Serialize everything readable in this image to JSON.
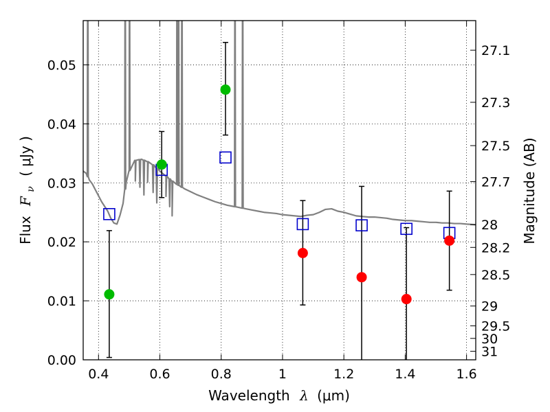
{
  "chart_data": {
    "type": "scatter",
    "xlabel": "Wavelength  λ (μm)",
    "ylabel": "Flux  F_ν  ( μJy )",
    "ylabel_parts": {
      "lead": "Flux",
      "symbol": "F",
      "subscript": "ν",
      "unit": "( μJy )"
    },
    "xlabel_parts": {
      "lead": "Wavelength",
      "symbol": "λ",
      "unit": "(μm)"
    },
    "y2label": "Magnitude (AB)",
    "xlim": [
      0.35,
      1.63
    ],
    "ylim": [
      0.0,
      0.0575
    ],
    "grid": true,
    "x_ticks": [
      0.4,
      0.6,
      0.8,
      1.0,
      1.2,
      1.4,
      1.6
    ],
    "x_tick_labels": [
      "0.4",
      "0.6",
      "0.8",
      "1",
      "1.2",
      "1.4",
      "1.6"
    ],
    "y_ticks": [
      0.0,
      0.01,
      0.02,
      0.03,
      0.04,
      0.05
    ],
    "y_tick_labels": [
      "0.00",
      "0.01",
      "0.02",
      "0.03",
      "0.04",
      "0.05"
    ],
    "y2_ticks": [
      {
        "label": "27.1",
        "mag": 27.1
      },
      {
        "label": "27.3",
        "mag": 27.3
      },
      {
        "label": "27.5",
        "mag": 27.5
      },
      {
        "label": "27.7",
        "mag": 27.7
      },
      {
        "label": "28",
        "mag": 28.0
      },
      {
        "label": "28.2",
        "mag": 28.2
      },
      {
        "label": "28.5",
        "mag": 28.5
      },
      {
        "label": "29",
        "mag": 29.0
      },
      {
        "label": "29.5",
        "mag": 29.5
      },
      {
        "label": "30",
        "mag": 30.0
      },
      {
        "label": "31",
        "mag": 31.0
      }
    ],
    "observed_detections": {
      "color": "#00bb00",
      "points": [
        {
          "x": 0.435,
          "y": 0.0111,
          "lo": 0.0004,
          "hi": 0.0219
        },
        {
          "x": 0.606,
          "y": 0.0331,
          "lo": 0.0275,
          "hi": 0.0387
        },
        {
          "x": 0.814,
          "y": 0.0458,
          "lo": 0.0381,
          "hi": 0.0538
        }
      ]
    },
    "observed_nondetections": {
      "color": "#ff0000",
      "points": [
        {
          "x": 1.066,
          "y": 0.0181,
          "lo": 0.0093,
          "hi": 0.027
        },
        {
          "x": 1.258,
          "y": 0.014,
          "lo": -0.002,
          "hi": 0.0294
        },
        {
          "x": 1.404,
          "y": 0.0103,
          "lo": -0.002,
          "hi": 0.0224
        },
        {
          "x": 1.544,
          "y": 0.0202,
          "lo": 0.0118,
          "hi": 0.0286
        }
      ]
    },
    "model_photometry": {
      "color": "#0000cc",
      "points": [
        {
          "x": 0.435,
          "y": 0.0247
        },
        {
          "x": 0.606,
          "y": 0.0322
        },
        {
          "x": 0.814,
          "y": 0.0343
        },
        {
          "x": 1.066,
          "y": 0.023
        },
        {
          "x": 1.258,
          "y": 0.0228
        },
        {
          "x": 1.404,
          "y": 0.0222
        },
        {
          "x": 1.544,
          "y": 0.0215
        }
      ]
    },
    "model_spectrum": {
      "color": "#808080",
      "continuum": [
        [
          0.35,
          0.032
        ],
        [
          0.36,
          0.0316
        ],
        [
          0.37,
          0.0305
        ],
        [
          0.38,
          0.0298
        ],
        [
          0.39,
          0.0288
        ],
        [
          0.4,
          0.0278
        ],
        [
          0.41,
          0.0268
        ],
        [
          0.42,
          0.026
        ],
        [
          0.43,
          0.0252
        ],
        [
          0.44,
          0.024
        ],
        [
          0.45,
          0.0232
        ],
        [
          0.46,
          0.023
        ],
        [
          0.47,
          0.0245
        ],
        [
          0.48,
          0.0265
        ],
        [
          0.49,
          0.03
        ],
        [
          0.5,
          0.032
        ],
        [
          0.52,
          0.0338
        ],
        [
          0.54,
          0.034
        ],
        [
          0.56,
          0.0336
        ],
        [
          0.58,
          0.033
        ],
        [
          0.6,
          0.032
        ],
        [
          0.62,
          0.0312
        ],
        [
          0.64,
          0.0303
        ],
        [
          0.66,
          0.0296
        ],
        [
          0.68,
          0.029
        ],
        [
          0.7,
          0.0285
        ],
        [
          0.72,
          0.028
        ],
        [
          0.74,
          0.0276
        ],
        [
          0.76,
          0.0272
        ],
        [
          0.78,
          0.0268
        ],
        [
          0.8,
          0.0265
        ],
        [
          0.82,
          0.0262
        ],
        [
          0.84,
          0.026
        ],
        [
          0.86,
          0.0258
        ],
        [
          0.88,
          0.0256
        ],
        [
          0.9,
          0.0254
        ],
        [
          0.92,
          0.0252
        ],
        [
          0.94,
          0.025
        ],
        [
          0.96,
          0.0249
        ],
        [
          0.98,
          0.0248
        ],
        [
          1.0,
          0.0246
        ],
        [
          1.02,
          0.0245
        ],
        [
          1.04,
          0.0244
        ],
        [
          1.06,
          0.0243
        ],
        [
          1.08,
          0.0245
        ],
        [
          1.1,
          0.0246
        ],
        [
          1.12,
          0.025
        ],
        [
          1.14,
          0.0255
        ],
        [
          1.16,
          0.0256
        ],
        [
          1.18,
          0.0252
        ],
        [
          1.2,
          0.025
        ],
        [
          1.22,
          0.0247
        ],
        [
          1.24,
          0.0244
        ],
        [
          1.26,
          0.0243
        ],
        [
          1.28,
          0.0242
        ],
        [
          1.3,
          0.0242
        ],
        [
          1.32,
          0.0241
        ],
        [
          1.34,
          0.024
        ],
        [
          1.36,
          0.0238
        ],
        [
          1.38,
          0.0237
        ],
        [
          1.4,
          0.0236
        ],
        [
          1.42,
          0.0236
        ],
        [
          1.44,
          0.0235
        ],
        [
          1.46,
          0.0234
        ],
        [
          1.48,
          0.0233
        ],
        [
          1.5,
          0.0233
        ],
        [
          1.52,
          0.0232
        ],
        [
          1.54,
          0.0232
        ],
        [
          1.56,
          0.0231
        ],
        [
          1.58,
          0.0231
        ],
        [
          1.6,
          0.023
        ],
        [
          1.63,
          0.0229
        ]
      ],
      "emission_lines": [
        0.365,
        0.487,
        0.501,
        0.656,
        0.661,
        0.672,
        0.845,
        0.87
      ],
      "minor_lines": [
        0.52,
        0.535,
        0.548,
        0.56,
        0.578,
        0.59,
        0.62,
        0.632,
        0.64
      ]
    }
  }
}
